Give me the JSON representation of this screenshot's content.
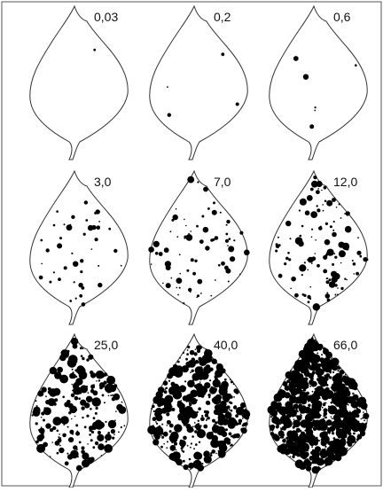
{
  "panels": [
    {
      "label": "0,03"
    },
    {
      "label": "0,2"
    },
    {
      "label": "0,6"
    },
    {
      "label": "3,0"
    },
    {
      "label": "7,0"
    },
    {
      "label": "12,0"
    },
    {
      "label": "25,0"
    },
    {
      "label": "40,0"
    },
    {
      "label": "66,0"
    }
  ]
}
